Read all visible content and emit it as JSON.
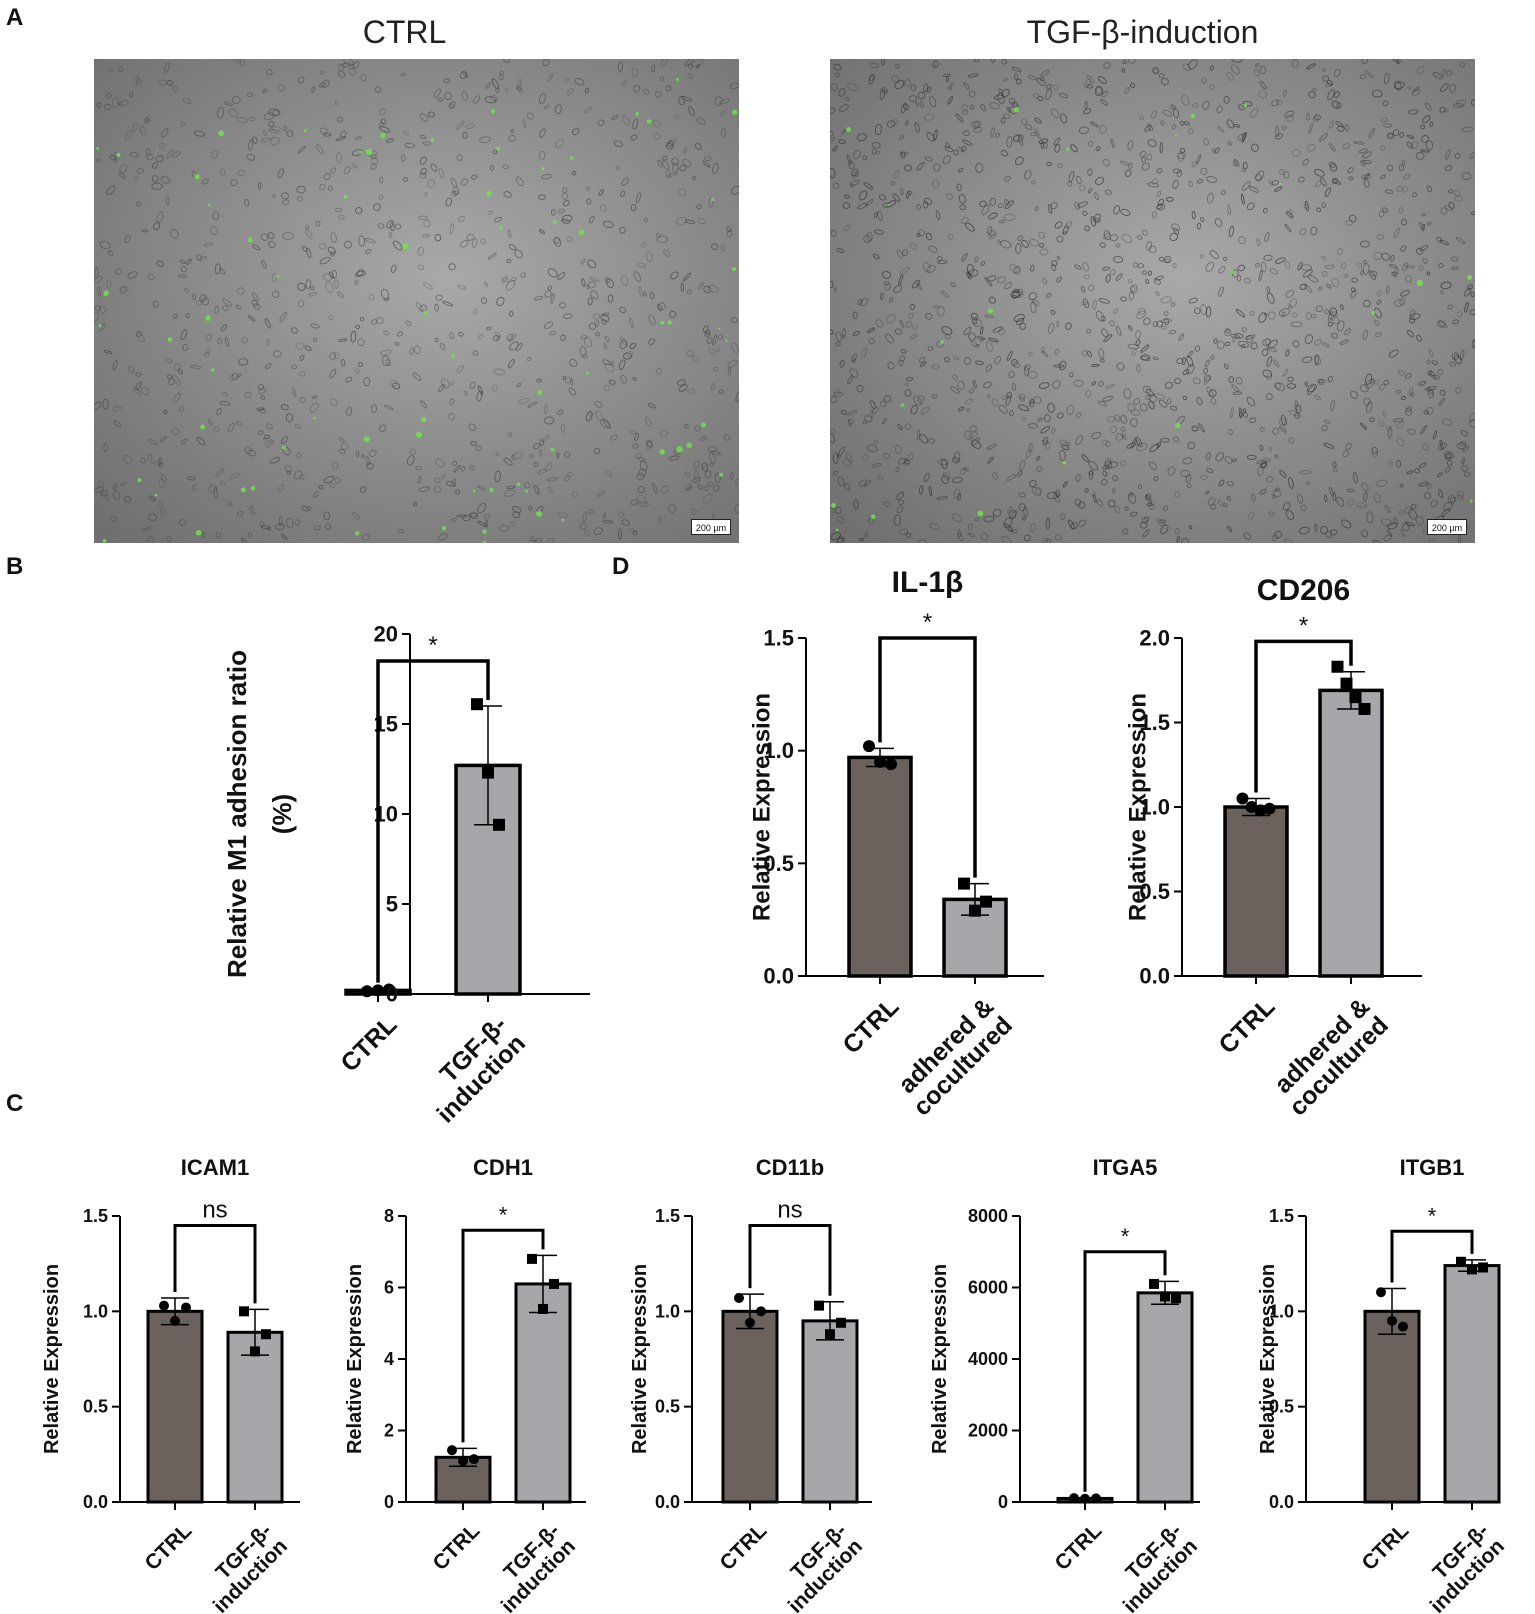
{
  "panels": {
    "A": {
      "label": "A",
      "images": [
        {
          "title": "CTRL",
          "scale_bar": "200 µm",
          "base_color": "#8f8f8f",
          "cell_color": "#4a4a4a",
          "green_dots": 70
        },
        {
          "title": "TGF-β-induction",
          "scale_bar": "200 µm",
          "base_color": "#8a8a8a",
          "cell_color": "#3a3a3a",
          "green_dots": 22
        }
      ]
    },
    "B": {
      "label": "B"
    },
    "C": {
      "label": "C"
    },
    "D": {
      "label": "D"
    }
  },
  "colors": {
    "ctrl_bar": "#6b625d",
    "treat_bar": "#a7a7ab",
    "axis": "#000000",
    "green_cell": "#6ee34a"
  },
  "chart_data": [
    {
      "id": "B",
      "type": "bar",
      "title": "",
      "ylabel": [
        "Relative M1 adhesion ratio",
        "(%)"
      ],
      "xlabel": "",
      "categories": [
        [
          "CTRL"
        ],
        [
          "TGF-β-",
          "induction"
        ]
      ],
      "values": [
        0.2,
        12.7
      ],
      "errors": [
        0.1,
        3.3
      ],
      "points": [
        [
          0.15,
          0.2,
          0.25
        ],
        [
          16.1,
          12.3,
          9.4
        ]
      ],
      "ylim": [
        0,
        20
      ],
      "yticks": [
        0,
        5,
        10,
        15,
        20
      ],
      "ytick_labels": [
        "0",
        "5",
        "10",
        "15",
        "20"
      ],
      "significance": "*",
      "sig_y": 18.5,
      "markers": [
        "circle",
        "square"
      ]
    },
    {
      "id": "D1",
      "type": "bar",
      "title": "IL-1β",
      "ylabel": [
        "Relative Expression"
      ],
      "xlabel": "",
      "categories": [
        [
          "CTRL"
        ],
        [
          "adhered &",
          "cocultured"
        ]
      ],
      "values": [
        0.97,
        0.34
      ],
      "errors": [
        0.04,
        0.07
      ],
      "points": [
        [
          1.02,
          0.95,
          0.94
        ],
        [
          0.41,
          0.29,
          0.33
        ]
      ],
      "ylim": [
        0,
        1.5
      ],
      "yticks": [
        0,
        0.5,
        1.0,
        1.5
      ],
      "ytick_labels": [
        "0.0",
        "0.5",
        "1.0",
        "1.5"
      ],
      "significance": "*",
      "sig_y": 1.5,
      "markers": [
        "circle",
        "square"
      ]
    },
    {
      "id": "D2",
      "type": "bar",
      "title": "CD206",
      "ylabel": [
        "Relative Expression"
      ],
      "xlabel": "",
      "categories": [
        [
          "CTRL"
        ],
        [
          "adhered &",
          "cocultured"
        ]
      ],
      "values": [
        1.0,
        1.69
      ],
      "errors": [
        0.05,
        0.11
      ],
      "points": [
        [
          1.05,
          1.0,
          0.98,
          0.99
        ],
        [
          1.83,
          1.73,
          1.65,
          1.58
        ]
      ],
      "ylim": [
        0,
        2.0
      ],
      "yticks": [
        0,
        0.5,
        1.0,
        1.5,
        2.0
      ],
      "ytick_labels": [
        "0.0",
        "0.5",
        "1.0",
        "1.5",
        "2.0"
      ],
      "significance": "*",
      "sig_y": 1.98,
      "markers": [
        "circle",
        "square"
      ]
    },
    {
      "id": "C1",
      "type": "bar",
      "title": "ICAM1",
      "ylabel": [
        "Relative Expression"
      ],
      "xlabel": "",
      "categories": [
        [
          "CTRL"
        ],
        [
          "TGF-β-",
          "induction"
        ]
      ],
      "values": [
        1.0,
        0.89
      ],
      "errors": [
        0.07,
        0.12
      ],
      "points": [
        [
          1.03,
          0.95,
          1.02
        ],
        [
          1.0,
          0.79,
          0.88
        ]
      ],
      "ylim": [
        0,
        1.5
      ],
      "yticks": [
        0,
        0.5,
        1.0,
        1.5
      ],
      "ytick_labels": [
        "0.0",
        "0.5",
        "1.0",
        "1.5"
      ],
      "significance": "ns",
      "sig_y": 1.45,
      "markers": [
        "circle",
        "square"
      ]
    },
    {
      "id": "C2",
      "type": "bar",
      "title": "CDH1",
      "ylabel": [
        "Relative Expression"
      ],
      "xlabel": "",
      "categories": [
        [
          "CTRL"
        ],
        [
          "TGF-β-",
          "induction"
        ]
      ],
      "values": [
        1.25,
        6.1
      ],
      "errors": [
        0.25,
        0.8
      ],
      "points": [
        [
          1.45,
          1.15,
          1.2
        ],
        [
          6.8,
          5.4,
          6.1
        ]
      ],
      "ylim": [
        0,
        8
      ],
      "yticks": [
        0,
        2,
        4,
        6,
        8
      ],
      "ytick_labels": [
        "0",
        "2",
        "4",
        "6",
        "8"
      ],
      "significance": "*",
      "sig_y": 7.6,
      "markers": [
        "circle",
        "square"
      ]
    },
    {
      "id": "C3",
      "type": "bar",
      "title": "CD11b",
      "ylabel": [
        "Relative Expression"
      ],
      "xlabel": "",
      "categories": [
        [
          "CTRL"
        ],
        [
          "TGF-β-",
          "induction"
        ]
      ],
      "values": [
        1.0,
        0.95
      ],
      "errors": [
        0.09,
        0.1
      ],
      "points": [
        [
          1.07,
          0.94,
          1.0
        ],
        [
          1.03,
          0.88,
          0.94
        ]
      ],
      "ylim": [
        0,
        1.5
      ],
      "yticks": [
        0,
        0.5,
        1.0,
        1.5
      ],
      "ytick_labels": [
        "0.0",
        "0.5",
        "1.0",
        "1.5"
      ],
      "significance": "ns",
      "sig_y": 1.45,
      "markers": [
        "circle",
        "square"
      ]
    },
    {
      "id": "C4",
      "type": "bar",
      "title": "ITGA5",
      "ylabel": [
        "Relative Expression"
      ],
      "xlabel": "",
      "categories": [
        [
          "CTRL"
        ],
        [
          "TGF-β-",
          "induction"
        ]
      ],
      "values": [
        100,
        5850
      ],
      "errors": [
        20,
        320
      ],
      "points": [
        [
          110,
          90,
          100
        ],
        [
          6100,
          5750,
          5700
        ]
      ],
      "ylim": [
        0,
        8000
      ],
      "yticks": [
        0,
        2000,
        4000,
        6000,
        8000
      ],
      "ytick_labels": [
        "0",
        "2000",
        "4000",
        "6000",
        "8000"
      ],
      "significance": "*",
      "sig_y": 7000,
      "markers": [
        "circle",
        "square"
      ]
    },
    {
      "id": "C5",
      "type": "bar",
      "title": "ITGB1",
      "ylabel": [
        "Relative Expression"
      ],
      "xlabel": "",
      "categories": [
        [
          "CTRL"
        ],
        [
          "TGF-β-",
          "induction"
        ]
      ],
      "values": [
        1.0,
        1.24
      ],
      "errors": [
        0.12,
        0.03
      ],
      "points": [
        [
          1.1,
          0.95,
          0.92
        ],
        [
          1.26,
          1.22,
          1.23
        ]
      ],
      "ylim": [
        0,
        1.5
      ],
      "yticks": [
        0,
        0.5,
        1.0,
        1.5
      ],
      "ytick_labels": [
        "0.0",
        "0.5",
        "1.0",
        "1.5"
      ],
      "significance": "*",
      "sig_y": 1.42,
      "markers": [
        "circle",
        "square"
      ]
    }
  ]
}
